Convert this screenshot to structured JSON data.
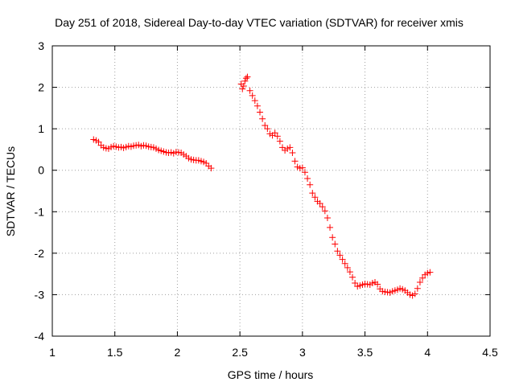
{
  "chart_data": {
    "type": "scatter",
    "title": "Day 251 of 2018, Sidereal Day-to-day VTEC variation (SDTVAR) for receiver xmis",
    "xlabel": "GPS time / hours",
    "ylabel": "SDTVAR / TECUs",
    "xlim": [
      1,
      4.5
    ],
    "ylim": [
      -4,
      3
    ],
    "xticks": [
      1,
      1.5,
      2,
      2.5,
      3,
      3.5,
      4,
      4.5
    ],
    "xtick_labels": [
      "1",
      "1.5",
      "2",
      "2.5",
      "3",
      "3.5",
      "4",
      "4.5"
    ],
    "yticks": [
      -4,
      -3,
      -2,
      -1,
      0,
      1,
      2,
      3
    ],
    "ytick_labels": [
      "-4",
      "-3",
      "-2",
      "-1",
      "0",
      "1",
      "2",
      "3"
    ],
    "grid": true,
    "marker": "+",
    "marker_color": "#ff0000",
    "series": [
      {
        "name": "segment-1",
        "points": [
          [
            1.33,
            0.74
          ],
          [
            1.35,
            0.72
          ],
          [
            1.37,
            0.68
          ],
          [
            1.39,
            0.6
          ],
          [
            1.41,
            0.55
          ],
          [
            1.43,
            0.53
          ],
          [
            1.45,
            0.52
          ],
          [
            1.47,
            0.56
          ],
          [
            1.49,
            0.58
          ],
          [
            1.51,
            0.57
          ],
          [
            1.53,
            0.55
          ],
          [
            1.55,
            0.56
          ],
          [
            1.57,
            0.54
          ],
          [
            1.59,
            0.56
          ],
          [
            1.61,
            0.58
          ],
          [
            1.63,
            0.57
          ],
          [
            1.65,
            0.59
          ],
          [
            1.67,
            0.6
          ],
          [
            1.69,
            0.61
          ],
          [
            1.71,
            0.58
          ],
          [
            1.73,
            0.6
          ],
          [
            1.75,
            0.59
          ],
          [
            1.77,
            0.57
          ],
          [
            1.79,
            0.56
          ],
          [
            1.81,
            0.55
          ],
          [
            1.83,
            0.52
          ],
          [
            1.85,
            0.49
          ],
          [
            1.87,
            0.47
          ],
          [
            1.89,
            0.45
          ],
          [
            1.91,
            0.43
          ],
          [
            1.93,
            0.42
          ],
          [
            1.95,
            0.43
          ],
          [
            1.97,
            0.41
          ],
          [
            1.99,
            0.44
          ],
          [
            2.01,
            0.43
          ],
          [
            2.03,
            0.42
          ],
          [
            2.05,
            0.38
          ],
          [
            2.07,
            0.34
          ],
          [
            2.09,
            0.29
          ],
          [
            2.11,
            0.26
          ],
          [
            2.13,
            0.25
          ],
          [
            2.15,
            0.24
          ],
          [
            2.17,
            0.24
          ],
          [
            2.19,
            0.22
          ],
          [
            2.21,
            0.2
          ],
          [
            2.23,
            0.17
          ],
          [
            2.25,
            0.1
          ],
          [
            2.27,
            0.05
          ]
        ]
      },
      {
        "name": "segment-2",
        "points": [
          [
            2.51,
            2.08
          ],
          [
            2.52,
            1.96
          ],
          [
            2.53,
            2.03
          ],
          [
            2.54,
            2.15
          ],
          [
            2.55,
            2.22
          ],
          [
            2.56,
            2.25
          ],
          [
            2.58,
            1.92
          ],
          [
            2.6,
            1.8
          ],
          [
            2.62,
            1.68
          ],
          [
            2.64,
            1.55
          ],
          [
            2.66,
            1.4
          ],
          [
            2.68,
            1.24
          ],
          [
            2.7,
            1.08
          ],
          [
            2.72,
            1.0
          ],
          [
            2.74,
            0.88
          ],
          [
            2.76,
            0.84
          ],
          [
            2.78,
            0.9
          ],
          [
            2.8,
            0.82
          ],
          [
            2.82,
            0.7
          ],
          [
            2.84,
            0.55
          ],
          [
            2.86,
            0.48
          ],
          [
            2.88,
            0.52
          ],
          [
            2.9,
            0.55
          ],
          [
            2.92,
            0.42
          ],
          [
            2.94,
            0.22
          ],
          [
            2.96,
            0.08
          ],
          [
            2.98,
            0.05
          ],
          [
            3.0,
            0.06
          ],
          [
            3.02,
            -0.05
          ],
          [
            3.04,
            -0.2
          ],
          [
            3.06,
            -0.35
          ],
          [
            3.08,
            -0.55
          ],
          [
            3.1,
            -0.65
          ],
          [
            3.12,
            -0.75
          ],
          [
            3.14,
            -0.8
          ],
          [
            3.16,
            -0.88
          ],
          [
            3.18,
            -0.98
          ],
          [
            3.2,
            -1.15
          ],
          [
            3.22,
            -1.38
          ],
          [
            3.24,
            -1.62
          ],
          [
            3.26,
            -1.78
          ],
          [
            3.28,
            -1.95
          ],
          [
            3.3,
            -2.05
          ],
          [
            3.32,
            -2.15
          ],
          [
            3.34,
            -2.25
          ],
          [
            3.36,
            -2.35
          ],
          [
            3.38,
            -2.45
          ],
          [
            3.4,
            -2.58
          ],
          [
            3.42,
            -2.72
          ],
          [
            3.44,
            -2.8
          ],
          [
            3.46,
            -2.78
          ],
          [
            3.48,
            -2.76
          ],
          [
            3.5,
            -2.74
          ],
          [
            3.52,
            -2.75
          ],
          [
            3.54,
            -2.76
          ],
          [
            3.56,
            -2.72
          ],
          [
            3.58,
            -2.7
          ],
          [
            3.6,
            -2.75
          ],
          [
            3.62,
            -2.86
          ],
          [
            3.64,
            -2.92
          ],
          [
            3.66,
            -2.93
          ],
          [
            3.68,
            -2.94
          ],
          [
            3.7,
            -2.95
          ],
          [
            3.72,
            -2.92
          ],
          [
            3.74,
            -2.9
          ],
          [
            3.76,
            -2.88
          ],
          [
            3.78,
            -2.85
          ],
          [
            3.8,
            -2.87
          ],
          [
            3.82,
            -2.9
          ],
          [
            3.84,
            -2.95
          ],
          [
            3.86,
            -3.0
          ],
          [
            3.88,
            -3.02
          ],
          [
            3.9,
            -2.98
          ],
          [
            3.92,
            -2.85
          ],
          [
            3.94,
            -2.7
          ],
          [
            3.96,
            -2.6
          ],
          [
            3.98,
            -2.52
          ],
          [
            4.0,
            -2.48
          ],
          [
            4.02,
            -2.46
          ]
        ]
      }
    ]
  }
}
